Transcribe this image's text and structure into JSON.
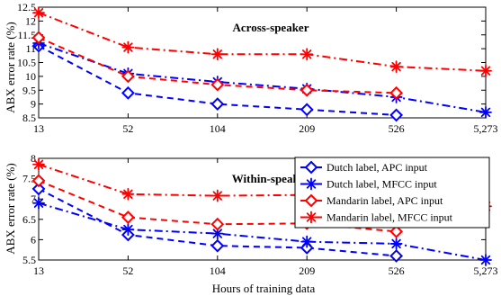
{
  "chart_data": {
    "type": "line",
    "x_categories": [
      "13",
      "52",
      "104",
      "209",
      "526",
      "5,273"
    ],
    "xlabel": "Hours of training data",
    "ylabel": "ABX error rate (%)",
    "series_styles": [
      {
        "name": "Dutch label, APC input",
        "color": "#0000ff",
        "marker": "diamond"
      },
      {
        "name": "Dutch label, MFCC input",
        "color": "#0000ff",
        "marker": "asterisk"
      },
      {
        "name": "Mandarin label, APC input",
        "color": "#ff0000",
        "marker": "diamond"
      },
      {
        "name": "Mandarin label, MFCC input",
        "color": "#ff0000",
        "marker": "asterisk"
      }
    ],
    "panels": [
      {
        "title": "Across-speaker",
        "ylim": [
          8.5,
          12.5
        ],
        "yticks": [
          "8.5",
          "9",
          "9.5",
          "10",
          "10.5",
          "11",
          "11.5",
          "12",
          "12.5"
        ],
        "series": [
          {
            "name": "Dutch label, APC input",
            "values": [
              11.1,
              9.4,
              9.0,
              8.8,
              8.6,
              null
            ]
          },
          {
            "name": "Dutch label, MFCC input",
            "values": [
              11.2,
              10.1,
              9.8,
              9.55,
              9.25,
              8.7
            ]
          },
          {
            "name": "Mandarin label, APC input",
            "values": [
              11.4,
              10.0,
              9.7,
              9.5,
              9.4,
              null
            ]
          },
          {
            "name": "Mandarin label, MFCC input",
            "values": [
              12.3,
              11.05,
              10.8,
              10.8,
              10.35,
              10.2
            ]
          }
        ]
      },
      {
        "title": "Within-speaker",
        "ylim": [
          5.5,
          8.0
        ],
        "yticks": [
          "5.5",
          "6",
          "6.5",
          "7",
          "7.5",
          "8"
        ],
        "series": [
          {
            "name": "Dutch label, APC input",
            "values": [
              7.25,
              6.12,
              5.85,
              5.8,
              5.6,
              null
            ]
          },
          {
            "name": "Dutch label, MFCC input",
            "values": [
              6.9,
              6.25,
              6.15,
              5.95,
              5.9,
              5.5
            ]
          },
          {
            "name": "Mandarin label, APC input",
            "values": [
              7.45,
              6.55,
              6.38,
              6.4,
              6.2,
              null
            ]
          },
          {
            "name": "Mandarin label, MFCC input",
            "values": [
              7.85,
              7.12,
              7.08,
              7.1,
              6.82,
              6.82
            ]
          }
        ]
      }
    ],
    "legend": {
      "placement": "bottom-panel-top-right"
    }
  }
}
